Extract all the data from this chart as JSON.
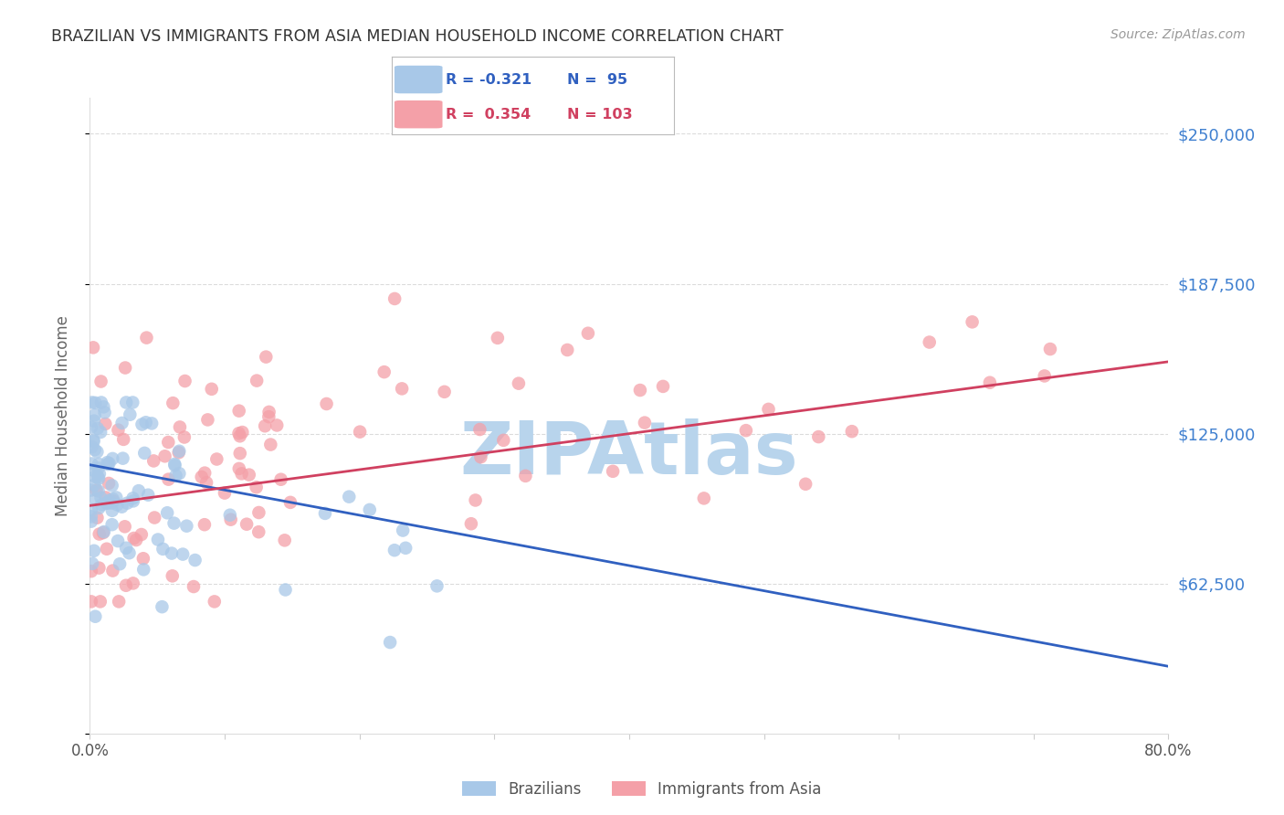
{
  "title": "BRAZILIAN VS IMMIGRANTS FROM ASIA MEDIAN HOUSEHOLD INCOME CORRELATION CHART",
  "source": "Source: ZipAtlas.com",
  "ylabel": "Median Household Income",
  "yticks": [
    0,
    62500,
    125000,
    187500,
    250000
  ],
  "ytick_labels": [
    "",
    "$62,500",
    "$125,000",
    "$187,500",
    "$250,000"
  ],
  "xmin": 0.0,
  "xmax": 0.8,
  "ymin": 0,
  "ymax": 265000,
  "blue_R": -0.321,
  "blue_N": 95,
  "pink_R": 0.354,
  "pink_N": 103,
  "blue_color": "#a8c8e8",
  "blue_edge_color": "#7aadd4",
  "pink_color": "#f4a0a8",
  "pink_edge_color": "#e07080",
  "blue_line_color": "#3060c0",
  "pink_line_color": "#d04060",
  "blue_label": "Brazilians",
  "pink_label": "Immigrants from Asia",
  "watermark": "ZIPAtlas",
  "watermark_color": "#b8d4ec",
  "background_color": "#ffffff",
  "grid_color": "#cccccc",
  "title_color": "#333333",
  "axis_label_color": "#666666",
  "right_tick_color": "#4080d0",
  "blue_trend_x0": 0.0,
  "blue_trend_x1": 0.8,
  "blue_trend_y0": 112000,
  "blue_trend_y1": 28000,
  "pink_trend_x0": 0.0,
  "pink_trend_x1": 0.8,
  "pink_trend_y0": 95000,
  "pink_trend_y1": 155000
}
